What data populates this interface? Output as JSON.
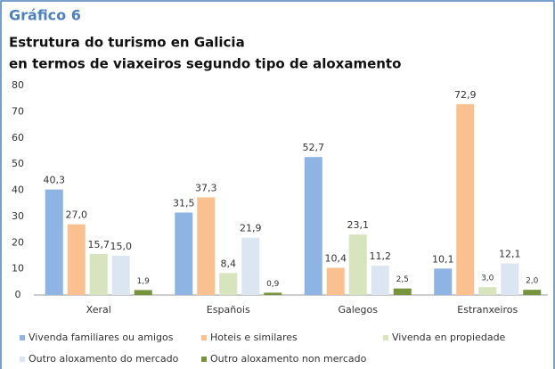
{
  "chart_data": {
    "type": "bar",
    "title": "Gráfico 6",
    "subtitle": [
      "Estrutura do turismo en Galicia",
      "en termos de viaxeiros segundo tipo de aloxamento"
    ],
    "categories": [
      "Xeral",
      "Españois",
      "Galegos",
      "Estranxeiros"
    ],
    "series": [
      {
        "name": "Vivenda familiares ou amigos",
        "color": "#8eb4e3",
        "values": [
          40.3,
          31.5,
          52.7,
          10.1
        ],
        "value_labels": [
          "40,3",
          "31,5",
          "52,7",
          "10,1"
        ]
      },
      {
        "name": "Hoteis e similares",
        "color": "#fac090",
        "values": [
          27.0,
          37.3,
          10.4,
          72.9
        ],
        "value_labels": [
          "27,0",
          "37,3",
          "10,4",
          "72,9"
        ]
      },
      {
        "name": "Vivenda en propiedade",
        "color": "#d7e4bd",
        "values": [
          15.7,
          8.4,
          23.1,
          3.0
        ],
        "value_labels": [
          "15,7",
          "8,4",
          "23,1",
          "3,0"
        ]
      },
      {
        "name": "Outro aloxamento do mercado",
        "color": "#dce6f2",
        "values": [
          15.0,
          21.9,
          11.2,
          12.1
        ],
        "value_labels": [
          "15,0",
          "21,9",
          "11,2",
          "12,1"
        ]
      },
      {
        "name": "Outro aloxamento non mercado",
        "color": "#77933c",
        "values": [
          1.9,
          0.9,
          2.5,
          2.0
        ],
        "value_labels": [
          "1,9",
          "0,9",
          "2,5",
          "2,0"
        ]
      }
    ],
    "ylim": [
      0,
      80
    ],
    "yticks": [
      0,
      10,
      20,
      30,
      40,
      50,
      60,
      70,
      80
    ],
    "grid": false
  }
}
